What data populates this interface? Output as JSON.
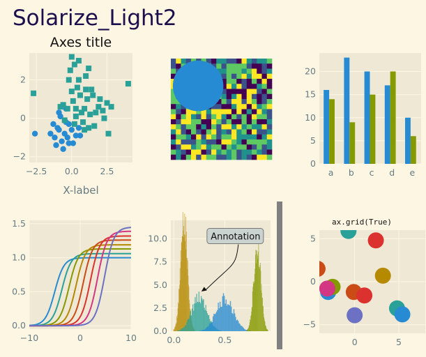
{
  "figure": {
    "suptitle": "Solarize_Light2",
    "palette": [
      "#268BD2",
      "#2AA198",
      "#859900",
      "#B58900",
      "#CB4B16",
      "#DC322F",
      "#D33682",
      "#6C71C4"
    ],
    "axes_bg": "#eee8d5",
    "fig_bg": "#fdf6e3",
    "tick_color": "#657b83"
  },
  "chart_data": [
    {
      "type": "scatter",
      "title": "Axes title",
      "xlabel": "X-label",
      "ylabel": "",
      "xlim": [
        -3,
        4.3
      ],
      "ylim": [
        -2.3,
        3.4
      ],
      "xticks": [
        -2.5,
        0,
        2.5
      ],
      "xtick_labels": [
        "−2.5",
        "0.0",
        "2.5"
      ],
      "yticks": [
        -2,
        0,
        2
      ],
      "ytick_labels": [
        "−2",
        "0",
        "2"
      ],
      "series": [
        {
          "marker": "circle",
          "color": "#268BD2",
          "points": [
            [
              -1.3,
              -0.3
            ],
            [
              -1.0,
              -0.5
            ],
            [
              -0.8,
              0.1
            ],
            [
              -0.5,
              -0.8
            ],
            [
              -0.3,
              -1.0
            ],
            [
              -1.1,
              -1.4
            ],
            [
              -0.7,
              -1.2
            ],
            [
              0.0,
              -0.6
            ],
            [
              -0.2,
              -0.3
            ],
            [
              0.3,
              -0.9
            ],
            [
              -0.9,
              0.3
            ],
            [
              -0.4,
              0.5
            ],
            [
              0.1,
              -1.3
            ],
            [
              -1.5,
              -0.8
            ],
            [
              -2.6,
              -0.8
            ],
            [
              0.6,
              -0.9
            ],
            [
              -0.6,
              -1.6
            ],
            [
              -0.2,
              -1.3
            ],
            [
              0.5,
              -0.5
            ],
            [
              -1.2,
              -1.0
            ],
            [
              -0.4,
              -0.2
            ],
            [
              -0.9,
              -0.6
            ]
          ]
        },
        {
          "marker": "square",
          "color": "#2AA198",
          "points": [
            [
              0.0,
              3.2
            ],
            [
              -0.1,
              2.5
            ],
            [
              0.2,
              2.8
            ],
            [
              0.5,
              2.0
            ],
            [
              1.0,
              1.5
            ],
            [
              1.5,
              1.2
            ],
            [
              2.0,
              1.0
            ],
            [
              2.5,
              0.8
            ],
            [
              4.0,
              1.8
            ],
            [
              -2.7,
              1.3
            ],
            [
              0.6,
              1.2
            ],
            [
              0.9,
              0.5
            ],
            [
              1.3,
              0.2
            ],
            [
              0.3,
              0.1
            ],
            [
              -0.3,
              0.5
            ],
            [
              0.8,
              -0.2
            ],
            [
              1.2,
              -0.5
            ],
            [
              2.2,
              0.4
            ],
            [
              0.4,
              1.6
            ],
            [
              1.0,
              2.2
            ],
            [
              -0.6,
              0.7
            ],
            [
              0.1,
              0.9
            ],
            [
              1.6,
              -0.4
            ],
            [
              2.6,
              -0.8
            ],
            [
              0.7,
              0.3
            ],
            [
              1.9,
              0.6
            ],
            [
              1.1,
              1.0
            ],
            [
              0.2,
              -0.3
            ],
            [
              -0.2,
              2.0
            ],
            [
              0.5,
              3.0
            ],
            [
              1.4,
              1.5
            ],
            [
              -0.8,
              0.6
            ],
            [
              2.3,
              0.0
            ],
            [
              0.9,
              -0.6
            ],
            [
              0.3,
              0.5
            ],
            [
              1.7,
              0.3
            ],
            [
              -0.5,
              -0.1
            ],
            [
              2.8,
              0.6
            ],
            [
              0.0,
              1.4
            ],
            [
              1.2,
              2.6
            ]
          ]
        }
      ]
    },
    {
      "type": "heatmap",
      "grid": [
        20,
        20
      ],
      "circle": {
        "cx_frac": 0.27,
        "cy_frac": 0.27,
        "r_frac": 0.25,
        "color": "#268BD2"
      },
      "colormap": [
        "#440154",
        "#3b528b",
        "#21918c",
        "#5ec962",
        "#fde725"
      ]
    },
    {
      "type": "bar",
      "categories": [
        "a",
        "b",
        "c",
        "d",
        "e"
      ],
      "series": [
        {
          "color": "#268BD2",
          "values": [
            16,
            23,
            20,
            17,
            10
          ]
        },
        {
          "color": "#859900",
          "values": [
            14,
            9,
            15,
            20,
            6
          ]
        }
      ],
      "ylim": [
        0,
        24
      ],
      "yticks": [
        0,
        5,
        10,
        15,
        20
      ],
      "ytick_labels": [
        "0",
        "5",
        "10",
        "15",
        "20"
      ]
    },
    {
      "type": "line",
      "xlim": [
        -10,
        10
      ],
      "ylim": [
        -0.05,
        1.55
      ],
      "xticks": [
        -10,
        0,
        10
      ],
      "xtick_labels": [
        "−10",
        "0",
        "10"
      ],
      "yticks": [
        0,
        0.5,
        1.0,
        1.5
      ],
      "ytick_labels": [
        "0.0",
        "0.5",
        "1.0",
        "1.5"
      ],
      "series": [
        {
          "color": "#268BD2",
          "shift": -5.0,
          "amp": 1.0
        },
        {
          "color": "#2AA198",
          "shift": -3.6,
          "amp": 1.06
        },
        {
          "color": "#859900",
          "shift": -2.2,
          "amp": 1.13
        },
        {
          "color": "#B58900",
          "shift": -0.8,
          "amp": 1.19
        },
        {
          "color": "#CB4B16",
          "shift": 0.6,
          "amp": 1.26
        },
        {
          "color": "#DC322F",
          "shift": 2.0,
          "amp": 1.32
        },
        {
          "color": "#D33682",
          "shift": 3.4,
          "amp": 1.39
        },
        {
          "color": "#6C71C4",
          "shift": 4.8,
          "amp": 1.45
        }
      ]
    },
    {
      "type": "histogram",
      "xlim": [
        -0.03,
        0.95
      ],
      "ylim": [
        0,
        12
      ],
      "xticks": [
        0,
        0.5
      ],
      "xtick_labels": [
        "0.0",
        "0.5"
      ],
      "yticks": [
        0,
        2.5,
        5,
        7.5,
        10
      ],
      "ytick_labels": [
        "0.0",
        "2.5",
        "5.0",
        "7.5",
        "10.0"
      ],
      "annotation": {
        "text": "Annotation",
        "xy": [
          0.27,
          4.3
        ],
        "xytext": [
          0.62,
          10.3
        ]
      },
      "series": [
        {
          "color": "#B58900",
          "center": 0.1,
          "width": 0.035,
          "peak": 11.5
        },
        {
          "color": "#2AA198",
          "center": 0.25,
          "width": 0.075,
          "peak": 3.6
        },
        {
          "color": "#268BD2",
          "center": 0.5,
          "width": 0.085,
          "peak": 3.5
        },
        {
          "color": "#859900",
          "center": 0.82,
          "width": 0.035,
          "peak": 9.0
        }
      ]
    },
    {
      "type": "scatter",
      "title": "ax.grid(True)",
      "grid": true,
      "xlim": [
        -4,
        8
      ],
      "ylim": [
        -6,
        6
      ],
      "xticks": [
        0,
        5
      ],
      "xtick_labels": [
        "0",
        "5"
      ],
      "yticks": [
        -5,
        0,
        5
      ],
      "ytick_labels": [
        "−5",
        "0",
        "5"
      ],
      "points": [
        {
          "x": -0.7,
          "y": 5.9,
          "color": "#2AA198"
        },
        {
          "x": 2.4,
          "y": 4.8,
          "color": "#DC322F"
        },
        {
          "x": 3.2,
          "y": 0.7,
          "color": "#B58900"
        },
        {
          "x": -4.2,
          "y": 1.5,
          "color": "#CB4B16"
        },
        {
          "x": -3.0,
          "y": -1.2,
          "color": "#268BD2"
        },
        {
          "x": -2.5,
          "y": -0.6,
          "color": "#859900"
        },
        {
          "x": -3.1,
          "y": -0.8,
          "color": "#D33682"
        },
        {
          "x": -0.1,
          "y": -1.2,
          "color": "#CB4B16"
        },
        {
          "x": 1.1,
          "y": -1.6,
          "color": "#DC322F"
        },
        {
          "x": 0.0,
          "y": -3.9,
          "color": "#6C71C4"
        },
        {
          "x": 4.8,
          "y": -3.1,
          "color": "#2AA198"
        },
        {
          "x": 5.4,
          "y": -3.8,
          "color": "#268BD2"
        }
      ]
    }
  ]
}
